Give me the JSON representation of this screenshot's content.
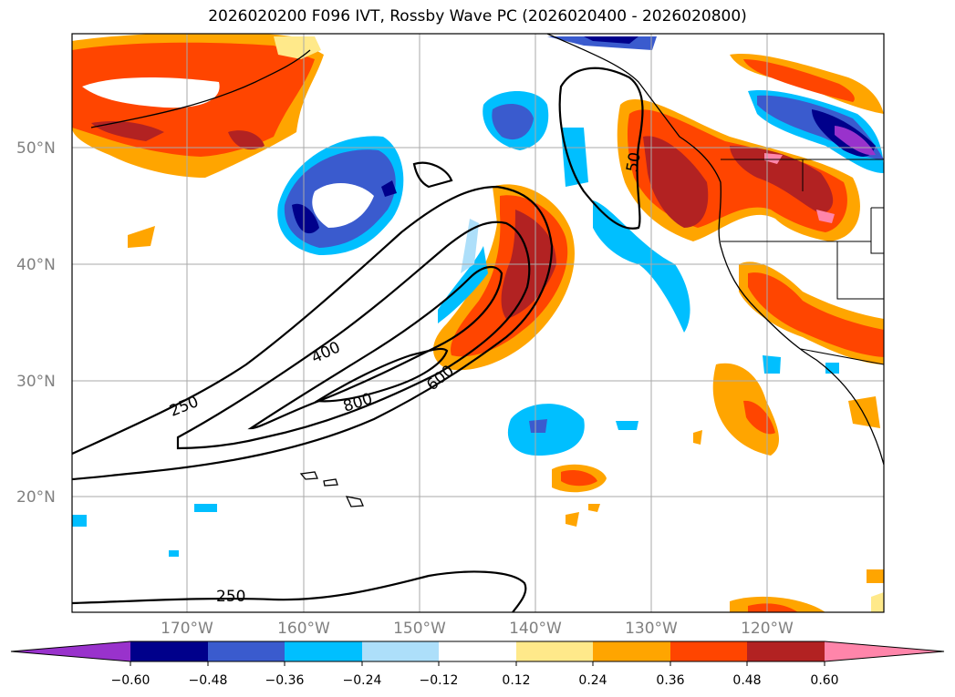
{
  "title": "2026020200 F096 IVT, Rossby Wave PC (2026020400 - 2026020800)",
  "lat_labels": [
    "50°N",
    "40°N",
    "30°N",
    "20°N"
  ],
  "lon_labels": [
    "170°W",
    "160°W",
    "150°W",
    "140°W",
    "130°W",
    "120°W"
  ],
  "contour_labels": [
    "250",
    "400",
    "600",
    "800",
    "250",
    "50"
  ],
  "colorbar": {
    "colors": [
      "#9932CC",
      "#00008B",
      "#3A5BCE",
      "#00BFFF",
      "#ADDFFA",
      "#FFFFFF",
      "#FFE98A",
      "#FFA500",
      "#FF4500",
      "#B22222",
      "#FF85AA"
    ],
    "tick_labels": [
      "−0.60",
      "−0.48",
      "−0.36",
      "−0.24",
      "−0.12",
      "0.12",
      "0.24",
      "0.36",
      "0.48",
      "0.60"
    ]
  }
}
